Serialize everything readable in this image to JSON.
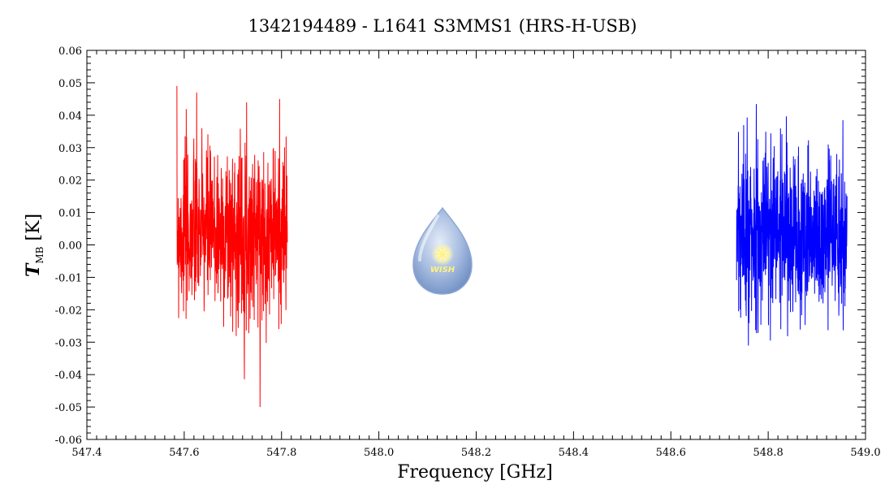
{
  "chart_data": {
    "type": "line",
    "title": "1342194489 - L1641 S3MMS1 (HRS-H-USB)",
    "xlabel": "Frequency [GHz]",
    "ylabel": {
      "T": "T",
      "sub": "MB",
      "unit": " [K]"
    },
    "xlim": [
      547.4,
      549.0
    ],
    "ylim": [
      -0.06,
      0.06
    ],
    "xticks": [
      547.4,
      547.6,
      547.8,
      548.0,
      548.2,
      548.4,
      548.6,
      548.8,
      549.0
    ],
    "xtick_labels": [
      "547.4",
      "547.6",
      "547.8",
      "548.0",
      "548.2",
      "548.4",
      "548.6",
      "548.8",
      "549.0"
    ],
    "yticks": [
      -0.06,
      -0.05,
      -0.04,
      -0.03,
      -0.02,
      -0.01,
      0.0,
      0.01,
      0.02,
      0.03,
      0.04,
      0.05,
      0.06
    ],
    "ytick_labels": [
      "-0.06",
      "-0.05",
      "-0.04",
      "-0.03",
      "-0.02",
      "-0.01",
      "0.00",
      "0.01",
      "0.02",
      "0.03",
      "0.04",
      "0.05",
      "0.06"
    ],
    "grid": false,
    "series": [
      {
        "color": "#ff0000",
        "x_range": [
          547.585,
          547.812
        ],
        "mean": 0.004,
        "sigma": 0.013,
        "n_points": 700,
        "seed": 7
      },
      {
        "color": "#0000ff",
        "x_range": [
          548.735,
          548.962
        ],
        "mean": 0.003,
        "sigma": 0.013,
        "n_points": 700,
        "seed": 13
      }
    ],
    "logo": {
      "text": "WISH"
    }
  }
}
